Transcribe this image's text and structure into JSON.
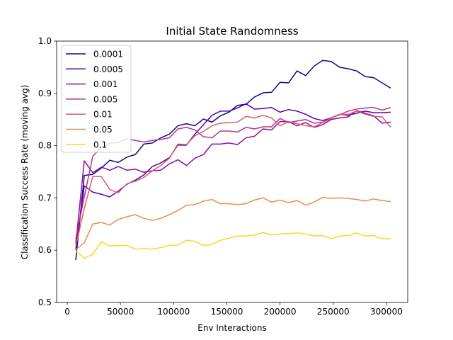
{
  "chart_data": {
    "type": "line",
    "title": "Initial State Randomness",
    "xlabel": "Env Interactions",
    "ylabel": "Classification Success Rate (moving avg)",
    "xlim": [
      -10000,
      320000
    ],
    "ylim": [
      0.5,
      1.0
    ],
    "xticks": [
      0,
      50000,
      100000,
      150000,
      200000,
      250000,
      300000
    ],
    "xtick_labels": [
      "0",
      "50000",
      "100000",
      "150000",
      "200000",
      "250000",
      "300000"
    ],
    "yticks": [
      0.5,
      0.6,
      0.7,
      0.8,
      0.9,
      1.0
    ],
    "ytick_labels": [
      "0.5",
      "0.6",
      "0.7",
      "0.8",
      "0.9",
      "1.0"
    ],
    "grid": false,
    "legend_position": "top-left",
    "x": [
      8000,
      16000,
      24000,
      32000,
      40000,
      48000,
      56000,
      64000,
      72000,
      80000,
      88000,
      96000,
      104000,
      112000,
      120000,
      128000,
      136000,
      144000,
      152000,
      160000,
      168000,
      176000,
      184000,
      192000,
      200000,
      208000,
      216000,
      224000,
      232000,
      240000,
      248000,
      256000,
      264000,
      272000,
      280000,
      288000,
      296000,
      304000
    ],
    "series": [
      {
        "name": "0.0001",
        "color": "#0d0887",
        "values": [
          0.581,
          0.743,
          0.745,
          0.757,
          0.772,
          0.768,
          0.778,
          0.783,
          0.803,
          0.805,
          0.815,
          0.822,
          0.838,
          0.842,
          0.838,
          0.851,
          0.845,
          0.857,
          0.864,
          0.877,
          0.879,
          0.893,
          0.901,
          0.902,
          0.921,
          0.92,
          0.943,
          0.934,
          0.952,
          0.963,
          0.961,
          0.95,
          0.947,
          0.943,
          0.932,
          0.93,
          0.92,
          0.91
        ]
      },
      {
        "name": "0.0005",
        "color": "#5302a3",
        "values": [
          0.601,
          0.723,
          0.711,
          0.707,
          0.702,
          0.713,
          0.726,
          0.734,
          0.744,
          0.76,
          0.767,
          0.777,
          0.801,
          0.801,
          0.822,
          0.84,
          0.858,
          0.866,
          0.866,
          0.872,
          0.88,
          0.87,
          0.871,
          0.873,
          0.864,
          0.869,
          0.866,
          0.86,
          0.852,
          0.848,
          0.853,
          0.86,
          0.858,
          0.862,
          0.866,
          0.863,
          0.863,
          0.864
        ]
      },
      {
        "name": "0.001",
        "color": "#8b0aa5",
        "values": [
          0.612,
          0.771,
          0.748,
          0.759,
          0.753,
          0.76,
          0.753,
          0.755,
          0.749,
          0.752,
          0.753,
          0.765,
          0.773,
          0.762,
          0.776,
          0.783,
          0.803,
          0.803,
          0.805,
          0.802,
          0.815,
          0.818,
          0.832,
          0.83,
          0.846,
          0.846,
          0.838,
          0.844,
          0.835,
          0.84,
          0.85,
          0.853,
          0.855,
          0.867,
          0.862,
          0.857,
          0.843,
          0.845
        ]
      },
      {
        "name": "0.005",
        "color": "#b83289",
        "values": [
          0.622,
          0.702,
          0.78,
          0.796,
          0.805,
          0.806,
          0.813,
          0.81,
          0.807,
          0.81,
          0.812,
          0.815,
          0.832,
          0.835,
          0.83,
          0.817,
          0.815,
          0.828,
          0.828,
          0.826,
          0.835,
          0.832,
          0.836,
          0.836,
          0.852,
          0.844,
          0.847,
          0.85,
          0.843,
          0.845,
          0.853,
          0.859,
          0.866,
          0.87,
          0.872,
          0.873,
          0.868,
          0.873
        ]
      },
      {
        "name": "0.01",
        "color": "#db5c68",
        "values": [
          0.607,
          0.68,
          0.741,
          0.741,
          0.716,
          0.71,
          0.727,
          0.732,
          0.739,
          0.752,
          0.762,
          0.776,
          0.803,
          0.802,
          0.819,
          0.827,
          0.838,
          0.843,
          0.844,
          0.845,
          0.856,
          0.853,
          0.858,
          0.853,
          0.838,
          0.846,
          0.842,
          0.838,
          0.836,
          0.844,
          0.852,
          0.86,
          0.86,
          0.866,
          0.86,
          0.856,
          0.855,
          0.835
        ]
      },
      {
        "name": "0.05",
        "color": "#f48849",
        "values": [
          0.601,
          0.614,
          0.65,
          0.653,
          0.648,
          0.659,
          0.664,
          0.668,
          0.661,
          0.657,
          0.661,
          0.668,
          0.676,
          0.686,
          0.687,
          0.694,
          0.697,
          0.689,
          0.689,
          0.687,
          0.689,
          0.696,
          0.7,
          0.692,
          0.696,
          0.691,
          0.695,
          0.686,
          0.692,
          0.701,
          0.699,
          0.7,
          0.699,
          0.697,
          0.694,
          0.698,
          0.695,
          0.693
        ]
      },
      {
        "name": "0.1",
        "color": "#fbd524",
        "values": [
          0.598,
          0.585,
          0.592,
          0.616,
          0.608,
          0.609,
          0.609,
          0.602,
          0.603,
          0.602,
          0.605,
          0.609,
          0.61,
          0.619,
          0.617,
          0.609,
          0.611,
          0.619,
          0.623,
          0.627,
          0.627,
          0.629,
          0.634,
          0.629,
          0.631,
          0.632,
          0.633,
          0.631,
          0.627,
          0.628,
          0.622,
          0.627,
          0.628,
          0.633,
          0.627,
          0.628,
          0.622,
          0.622
        ]
      }
    ]
  }
}
